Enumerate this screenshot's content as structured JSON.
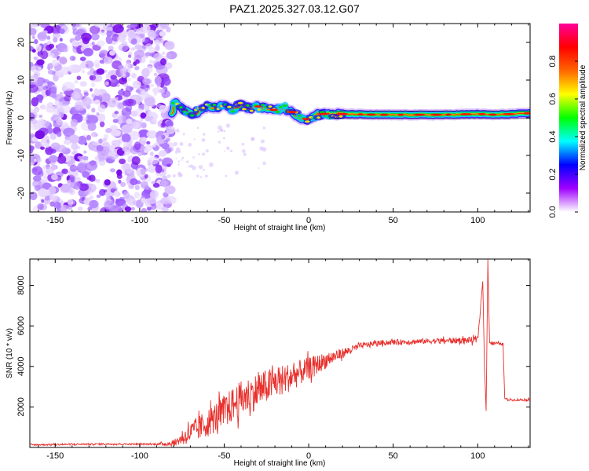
{
  "title": "PAZ1.2025.327.03.12.G07",
  "chart_data": [
    {
      "type": "heatmap",
      "name": "spectrogram",
      "xlabel": "Height of straight line (km)",
      "ylabel": "Frequency (Hz)",
      "xlim": [
        -165,
        131
      ],
      "ylim": [
        -25,
        25
      ],
      "xticks": [
        -150,
        -100,
        -50,
        0,
        50,
        100
      ],
      "yticks": [
        -20,
        -10,
        0,
        10,
        20
      ],
      "xtick_labels": [
        "-150",
        "-100",
        "-50",
        "0",
        "50",
        "100"
      ],
      "ytick_labels": [
        "-20",
        "-10",
        "0",
        "10",
        "20"
      ],
      "noise_region_km": [
        -165,
        -81
      ],
      "signal_track": [
        {
          "x": -80,
          "f": 4.5
        },
        {
          "x": -75,
          "f": 2.5
        },
        {
          "x": -70,
          "f": 1.0
        },
        {
          "x": -65,
          "f": 1.5
        },
        {
          "x": -60,
          "f": 3.0
        },
        {
          "x": -55,
          "f": 2.5
        },
        {
          "x": -50,
          "f": 3.5
        },
        {
          "x": -45,
          "f": 2.0
        },
        {
          "x": -40,
          "f": 3.5
        },
        {
          "x": -35,
          "f": 2.5
        },
        {
          "x": -30,
          "f": 3.0
        },
        {
          "x": -25,
          "f": 2.5
        },
        {
          "x": -20,
          "f": 2.0
        },
        {
          "x": -15,
          "f": 2.5
        },
        {
          "x": -10,
          "f": 1.5
        },
        {
          "x": -5,
          "f": 0.0
        },
        {
          "x": 0,
          "f": -0.5
        },
        {
          "x": 5,
          "f": 1.0
        },
        {
          "x": 10,
          "f": 1.0
        },
        {
          "x": 20,
          "f": 1.0
        },
        {
          "x": 40,
          "f": 0.8
        },
        {
          "x": 60,
          "f": 0.8
        },
        {
          "x": 80,
          "f": 0.8
        },
        {
          "x": 100,
          "f": 1.0
        },
        {
          "x": 110,
          "f": 0.8
        },
        {
          "x": 131,
          "f": 1.2
        }
      ],
      "colorbar": {
        "label": "Normalized spectral amplitude",
        "range": [
          0,
          1
        ],
        "ticks": [
          0.0,
          0.2,
          0.4,
          0.6,
          0.8
        ],
        "tick_labels": [
          "0.0",
          "0.2",
          "0.4",
          "0.6",
          "0.8"
        ],
        "stops": [
          "#ffffff",
          "#a000ff",
          "#0000ff",
          "#00ffff",
          "#00ff00",
          "#ffff00",
          "#ff6600",
          "#ff0000",
          "#ff0099"
        ]
      }
    },
    {
      "type": "line",
      "name": "snr",
      "xlabel": "Height of straight line (km)",
      "ylabel": "SNR (10 * v/v)",
      "xlim": [
        -165,
        131
      ],
      "ylim": [
        0,
        9300
      ],
      "xticks": [
        -150,
        -100,
        -50,
        0,
        50,
        100
      ],
      "yticks": [
        2000,
        4000,
        6000,
        8000
      ],
      "xtick_labels": [
        "-150",
        "-100",
        "-50",
        "0",
        "50",
        "100"
      ],
      "ytick_labels": [
        "2000",
        "4000",
        "6000",
        "8000"
      ],
      "color": "#e8302c",
      "series": [
        {
          "name": "SNR",
          "x": [
            -165,
            -120,
            -90,
            -80,
            -75,
            -70,
            -60,
            -50,
            -40,
            -30,
            -20,
            -10,
            0,
            10,
            20,
            30,
            40,
            50,
            60,
            70,
            80,
            90,
            100,
            103,
            104,
            105,
            106,
            107,
            108,
            110,
            115,
            116,
            120,
            131
          ],
          "values": [
            130,
            170,
            160,
            200,
            450,
            700,
            1200,
            1800,
            2400,
            2800,
            3200,
            3500,
            3900,
            4300,
            4650,
            5000,
            5150,
            5200,
            5220,
            5250,
            5270,
            5280,
            5300,
            8200,
            4000,
            1800,
            9300,
            5200,
            5150,
            5150,
            5100,
            2400,
            2350,
            2350
          ],
          "noise": [
            40,
            40,
            40,
            150,
            300,
            550,
            700,
            800,
            900,
            900,
            800,
            700,
            550,
            400,
            250,
            150,
            130,
            130,
            130,
            130,
            140,
            150,
            180,
            0,
            0,
            0,
            0,
            120,
            120,
            80,
            60,
            60,
            60,
            60
          ]
        }
      ]
    }
  ]
}
